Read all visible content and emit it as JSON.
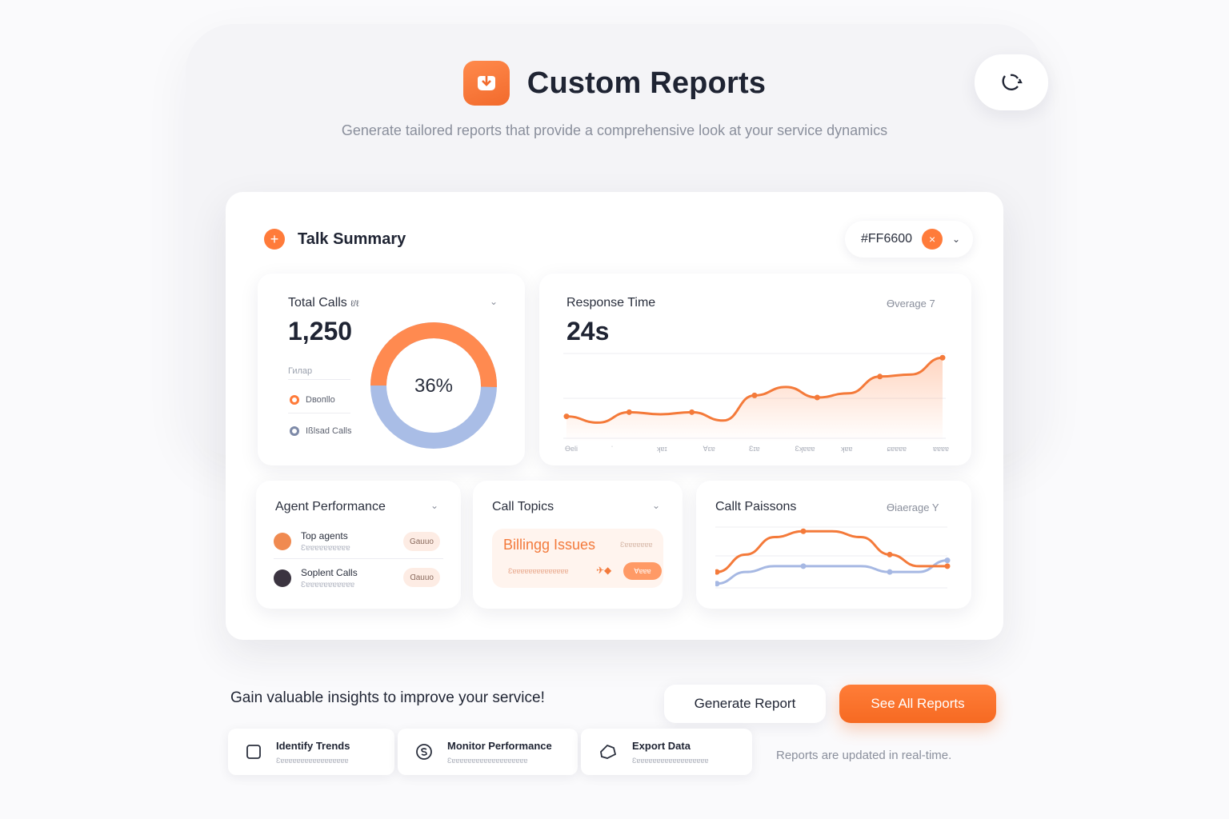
{
  "header": {
    "title": "Custom Reports",
    "subtitle": "Generate tailored reports that provide a comprehensive look at your service dynamics"
  },
  "icons": {
    "logo": "box-logo-icon",
    "corner": "cycle-icon"
  },
  "summary_card": {
    "title": "Talk Summary",
    "color_value": "#FF6600",
    "accent": "#FF7B3A"
  },
  "total_calls": {
    "title": "Total Calls",
    "title_suffix": "ℓ/ℓ",
    "value": "1,250",
    "legend_header": "Гилар",
    "legend_1": "Dвопllo",
    "legend_2": "Ißlsad Calls",
    "donut_label": "36%",
    "donut_percent": 36
  },
  "response_time": {
    "title": "Response Time",
    "value": "24s",
    "average_label": "Ɵverage 7",
    "x_ticks": [
      "Ɵeli",
      "ˈ",
      "ʞɐɪ",
      "Ɐɛɐ",
      "Ɛɪɐ",
      "Ɛʞɐɐɐ",
      "ʞɐɐ",
      "ɕɐɐɐɐ",
      "ɐɐɐɐ"
    ],
    "series": [
      12,
      9,
      14,
      13,
      14,
      10,
      22,
      26,
      21,
      23,
      31,
      32,
      40
    ]
  },
  "agent_performance": {
    "title": "Agent Performance",
    "rows": [
      {
        "name": "Top agents",
        "sub": "Ɛɐɐɐɐɐɐɐɐɐɐ",
        "tag": "Gauuo"
      },
      {
        "name": "Soplent Calls",
        "sub": "Ɛɐɐɐɐɐɐɐɐɐɐɐ",
        "tag": "Ɑauuo"
      }
    ]
  },
  "call_topics": {
    "title": "Call Topics",
    "topic": "Billingg Issues",
    "topic_small": "Ɛɐɐɐɐɐɐɐ",
    "topic_sub": "Ɛɐɐɐɐɐɐɐɐɐɐɐɐɐɐ",
    "arrow": "✈◆",
    "pill": "Ɐɐɐɐ"
  },
  "call_reasons": {
    "title": "Callt Paissons",
    "average_label": "Ɵiaerage Y",
    "series": [
      {
        "name": "orange",
        "values": [
          3,
          6,
          9,
          10,
          10,
          9,
          6,
          4,
          4
        ]
      },
      {
        "name": "blue",
        "values": [
          1,
          3,
          4,
          4,
          4,
          4,
          3,
          3,
          5
        ]
      }
    ]
  },
  "footer": {
    "insight": "Gain valuable insights to improve your service!",
    "generate_label": "Generate Report",
    "see_all_label": "See All Reports",
    "realtime_note": "Reports are updated in real-time.",
    "features": [
      {
        "title": "Identify Trends",
        "sub": "Ɛɐɐɐɐɐɐɐɐɐɐɐɐɐɐɐɐɐ",
        "icon": "square-icon"
      },
      {
        "title": "Monitor Performance",
        "sub": "Ɛɐɐɐɐɐɐɐɐɐɐɐɐɐɐɐɐɐɐɐ",
        "icon": "dollar-circle-icon"
      },
      {
        "title": "Export Data",
        "sub": "Ɛɐɐɐɐɐɐɐɐɐɐɐɐɐɐɐɐɐɐ",
        "icon": "export-tag-icon"
      }
    ]
  }
}
